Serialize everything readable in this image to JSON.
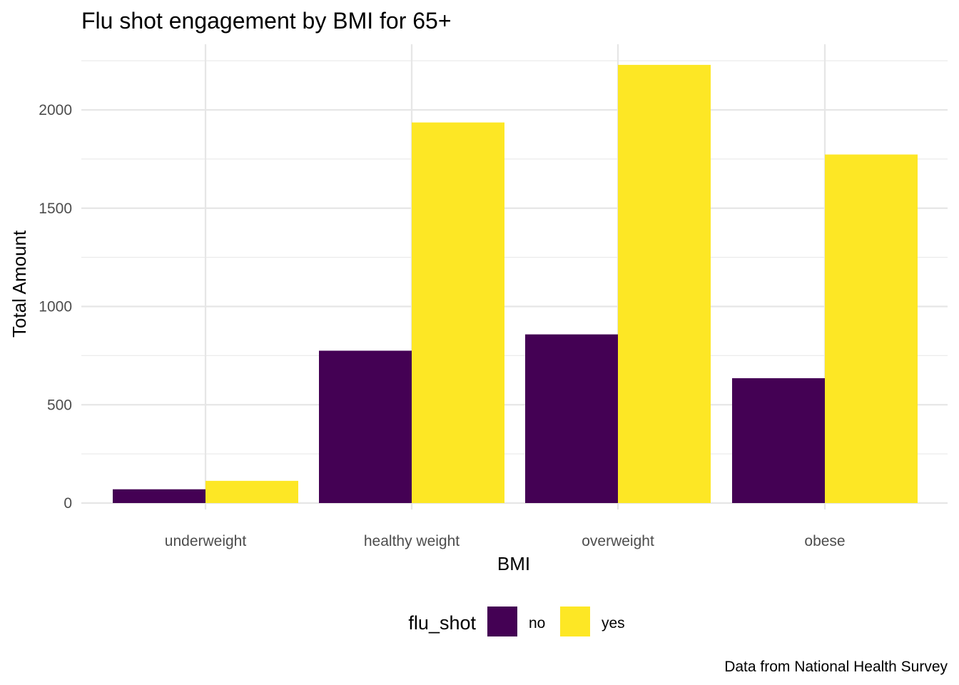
{
  "chart_data": {
    "type": "bar",
    "title": "Flu shot engagement by BMI for 65+",
    "xlabel": "BMI",
    "ylabel": "Total Amount",
    "caption": "Data from National Health Survey",
    "categories": [
      "underweight",
      "healthy weight",
      "overweight",
      "obese"
    ],
    "ylim": [
      0,
      2250
    ],
    "yticks": [
      "0",
      "500",
      "1000",
      "1500",
      "2000"
    ],
    "grid": true,
    "legend_position": "bottom",
    "legend_title": "flu_shot",
    "series": [
      {
        "name": "no",
        "color": "#440154",
        "values": [
          70,
          775,
          858,
          635
        ]
      },
      {
        "name": "yes",
        "color": "#FDE725",
        "values": [
          113,
          1936,
          2229,
          1773
        ]
      }
    ]
  }
}
